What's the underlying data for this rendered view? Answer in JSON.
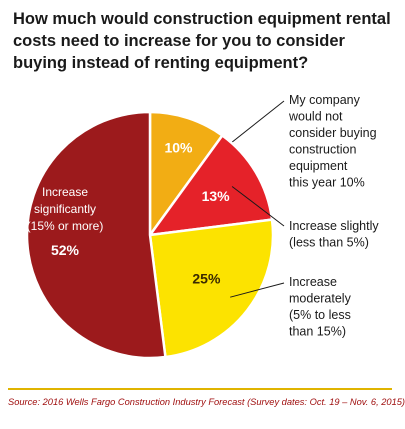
{
  "title": "How much would construction equipment rental costs need to increase for you to consider buying instead of renting equipment?",
  "source": "Source: 2016 Wells Fargo Construction Industry Forecast (Survey dates: Oct. 19 – Nov. 6, 2015)",
  "colors": {
    "rule": "#e0b400",
    "source_text": "#a01010"
  },
  "chart_data": {
    "type": "pie",
    "slices": [
      {
        "value": 10,
        "pct_label": "10%",
        "color": "#f2ad14",
        "label_lines": [
          "My company",
          "would not",
          "consider buying",
          "construction",
          "equipment",
          "this year 10%"
        ]
      },
      {
        "value": 13,
        "pct_label": "13%",
        "color": "#e52229",
        "label_lines": [
          "Increase slightly",
          "(less than 5%)"
        ]
      },
      {
        "value": 25,
        "pct_label": "25%",
        "color": "#fce300",
        "label_lines": [
          "Increase",
          "moderately",
          "(5% to less",
          "than 15%)"
        ]
      },
      {
        "value": 52,
        "pct_label": "52%",
        "color": "#9c1a1c",
        "label_lines": [
          "Increase",
          "significantly",
          "(15% or more)"
        ]
      }
    ]
  }
}
